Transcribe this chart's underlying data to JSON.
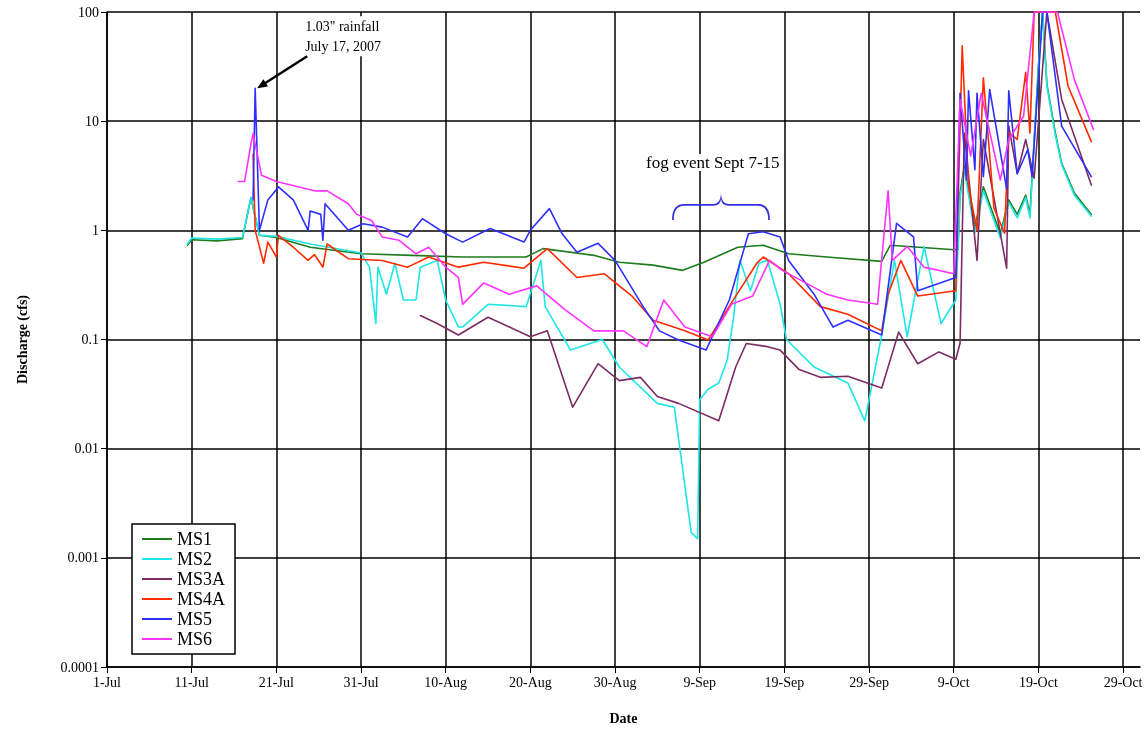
{
  "chart_data": {
    "type": "line",
    "xlabel": "Date",
    "ylabel": "Discharge (cfs)",
    "xlim": [
      "2007-07-01",
      "2007-10-31"
    ],
    "xticks": [
      {
        "value": "2007-07-01",
        "label": "1-Jul"
      },
      {
        "value": "2007-07-11",
        "label": "11-Jul"
      },
      {
        "value": "2007-07-21",
        "label": "21-Jul"
      },
      {
        "value": "2007-07-31",
        "label": "31-Jul"
      },
      {
        "value": "2007-08-10",
        "label": "10-Aug"
      },
      {
        "value": "2007-08-20",
        "label": "20-Aug"
      },
      {
        "value": "2007-08-30",
        "label": "30-Aug"
      },
      {
        "value": "2007-09-09",
        "label": "9-Sep"
      },
      {
        "value": "2007-09-19",
        "label": "19-Sep"
      },
      {
        "value": "2007-09-29",
        "label": "29-Sep"
      },
      {
        "value": "2007-10-09",
        "label": "9-Oct"
      },
      {
        "value": "2007-10-19",
        "label": "19-Oct"
      },
      {
        "value": "2007-10-29",
        "label": "29-Oct"
      }
    ],
    "ylim": [
      0.0001,
      100
    ],
    "yticks": [
      0.0001,
      0.001,
      0.01,
      0.1,
      1,
      10,
      100
    ],
    "log": "y",
    "grid": true,
    "legend": "bottom left",
    "marker": "none",
    "line_style": "solid",
    "annotations": [
      {
        "text": "1.03\" rainfall\nJuly 17, 2007",
        "x": "2007-07-18T12:00",
        "y": 20
      },
      "fog event Sept 7-15"
    ],
    "series": [
      {
        "name": "MS1",
        "color": "#1e7b1e",
        "x": [
          "2007-07-10T12:00",
          "2007-07-11",
          "2007-07-14",
          "2007-07-17",
          "2007-07-18",
          "2007-07-19",
          "2007-07-21",
          "2007-07-25",
          "2007-07-31",
          "2007-08-06",
          "2007-08-12",
          "2007-08-19T12:00",
          "2007-08-21T12:00",
          "2007-08-27T12:00",
          "2007-08-30T12:00",
          "2007-09-03T12:00",
          "2007-09-07",
          "2007-09-09T12:00",
          "2007-09-13T12:00",
          "2007-09-16T12:00",
          "2007-09-19T12:00",
          "2007-09-24",
          "2007-09-30T12:00",
          "2007-10-01T12:00",
          "2007-10-09T12:00",
          "2007-10-09T18:00",
          "2007-10-10T06:00",
          "2007-10-11T12:00",
          "2007-10-12T12:00",
          "2007-10-14T12:00",
          "2007-10-15T12:00",
          "2007-10-16T12:00",
          "2007-10-17T12:00",
          "2007-10-18",
          "2007-10-19",
          "2007-10-19T12:00",
          "2007-10-20",
          "2007-10-21",
          "2007-10-21T18:00",
          "2007-10-23T06:00",
          "2007-10-25T06:00"
        ],
        "values": [
          0.73,
          0.82,
          0.8,
          0.84,
          2.0,
          0.9,
          0.86,
          0.7,
          0.61,
          0.59,
          0.57,
          0.57,
          0.68,
          0.59,
          0.51,
          0.48,
          0.43,
          0.51,
          0.7,
          0.73,
          0.61,
          0.57,
          0.52,
          0.73,
          0.66,
          2.2,
          3.9,
          1.07,
          2.5,
          0.93,
          1.9,
          1.4,
          2.1,
          1.4,
          32,
          100,
          22,
          7.8,
          4.1,
          2.2,
          1.4
        ]
      },
      {
        "name": "MS2",
        "color": "#1ee6e6",
        "x": [
          "2007-07-10T12:00",
          "2007-07-11",
          "2007-07-14",
          "2007-07-17",
          "2007-07-18",
          "2007-07-19",
          "2007-07-21",
          "2007-07-25",
          "2007-07-31",
          "2007-08-01",
          "2007-08-01T18:00",
          "2007-08-02",
          "2007-08-03",
          "2007-08-04",
          "2007-08-05",
          "2007-08-06T12:00",
          "2007-08-07",
          "2007-08-09",
          "2007-08-10",
          "2007-08-11T12:00",
          "2007-08-12",
          "2007-08-15",
          "2007-08-19T12:00",
          "2007-08-21T06:00",
          "2007-08-21T18:00",
          "2007-08-24T18:00",
          "2007-08-28T12:00",
          "2007-08-30T12:00",
          "2007-09-04",
          "2007-09-06",
          "2007-09-08",
          "2007-09-08T18:00",
          "2007-09-09",
          "2007-09-10",
          "2007-09-11T06:00",
          "2007-09-12T06:00",
          "2007-09-13",
          "2007-09-13T18:00",
          "2007-09-15",
          "2007-09-16",
          "2007-09-17",
          "2007-09-18T12:00",
          "2007-09-19T06:00",
          "2007-09-22T12:00",
          "2007-09-26T12:00",
          "2007-09-28T12:00",
          "2007-09-30T12:00",
          "2007-10-02",
          "2007-10-03T12:00",
          "2007-10-05T12:00",
          "2007-10-07T12:00",
          "2007-10-09T06:00",
          "2007-10-09T18:00",
          "2007-10-10T06:00",
          "2007-10-11T12:00",
          "2007-10-12T12:00",
          "2007-10-14T12:00",
          "2007-10-15T12:00",
          "2007-10-16T12:00",
          "2007-10-17T12:00",
          "2007-10-18",
          "2007-10-19",
          "2007-10-19T12:00",
          "2007-10-20",
          "2007-10-21",
          "2007-10-21T18:00",
          "2007-10-23T06:00",
          "2007-10-25T06:00"
        ],
        "values": [
          0.75,
          0.85,
          0.83,
          0.86,
          2.0,
          0.9,
          0.88,
          0.75,
          0.62,
          0.46,
          0.14,
          0.46,
          0.26,
          0.5,
          0.23,
          0.23,
          0.46,
          0.53,
          0.23,
          0.13,
          0.13,
          0.21,
          0.2,
          0.53,
          0.2,
          0.08,
          0.1,
          0.056,
          0.026,
          0.024,
          0.0017,
          0.0015,
          0.028,
          0.035,
          0.04,
          0.065,
          0.16,
          0.53,
          0.28,
          0.5,
          0.53,
          0.21,
          0.1,
          0.056,
          0.04,
          0.018,
          0.11,
          0.53,
          0.106,
          0.71,
          0.14,
          0.23,
          2.0,
          3.6,
          0.95,
          2.3,
          0.85,
          1.8,
          1.3,
          2.0,
          1.3,
          30,
          100,
          21,
          7.5,
          4.0,
          2.1,
          1.35
        ]
      },
      {
        "name": "MS3A",
        "color": "#7b2d62",
        "x": [
          "2007-08-07",
          "2007-08-09",
          "2007-08-11T12:00",
          "2007-08-15",
          "2007-08-20",
          "2007-08-22",
          "2007-08-25",
          "2007-08-28",
          "2007-08-30T12:00",
          "2007-09-02",
          "2007-09-04",
          "2007-09-06T12:00",
          "2007-09-11T06:00",
          "2007-09-13T06:00",
          "2007-09-14T12:00",
          "2007-09-17",
          "2007-09-18T12:00",
          "2007-09-20T18:00",
          "2007-09-23T06:00",
          "2007-09-26T12:00",
          "2007-09-30T12:00",
          "2007-10-02T12:00",
          "2007-10-04T18:00",
          "2007-10-07T06:00",
          "2007-10-09T06:00",
          "2007-10-09T18:00",
          "2007-10-10T06:00",
          "2007-10-11T18:00",
          "2007-10-12T12:00",
          "2007-10-15T06:00",
          "2007-10-15T12:00",
          "2007-10-16T12:00",
          "2007-10-17T12:00",
          "2007-10-18T12:00",
          "2007-10-20",
          "2007-10-21T18:00",
          "2007-10-25T06:00"
        ],
        "values": [
          0.166,
          0.14,
          0.11,
          0.16,
          0.106,
          0.12,
          0.024,
          0.06,
          0.042,
          0.045,
          0.03,
          0.026,
          0.018,
          0.056,
          0.092,
          0.086,
          0.08,
          0.053,
          0.045,
          0.046,
          0.036,
          0.117,
          0.06,
          0.077,
          0.066,
          0.093,
          7.8,
          0.53,
          6.8,
          0.45,
          9,
          3.3,
          6.8,
          3,
          100,
          15.8,
          2.6
        ]
      },
      {
        "name": "MS4A",
        "color": "#ff2a00",
        "x": [
          "2007-07-18T06:00",
          "2007-07-18T12:00",
          "2007-07-19T12:00",
          "2007-07-20",
          "2007-07-21",
          "2007-07-21T06:00",
          "2007-07-23",
          "2007-07-24T18:00",
          "2007-07-25T12:00",
          "2007-07-26T12:00",
          "2007-07-27",
          "2007-07-29T12:00",
          "2007-08-02T12:00",
          "2007-08-05T12:00",
          "2007-08-08",
          "2007-08-11T12:00",
          "2007-08-14T12:00",
          "2007-08-19T06:00",
          "2007-08-22",
          "2007-08-25T12:00",
          "2007-08-28T18:00",
          "2007-09-01",
          "2007-09-03T12:00",
          "2007-09-07T06:00",
          "2007-09-10",
          "2007-09-13T06:00",
          "2007-09-15T18:00",
          "2007-09-16T12:00",
          "2007-09-19T12:00",
          "2007-09-23T06:00",
          "2007-09-26T12:00",
          "2007-09-30T12:00",
          "2007-10-01T06:00",
          "2007-10-02T18:00",
          "2007-10-04T18:00",
          "2007-10-09T06:00",
          "2007-10-10",
          "2007-10-10T18:00",
          "2007-10-11T18:00",
          "2007-10-12T12:00",
          "2007-10-13T18:00",
          "2007-10-15",
          "2007-10-15T12:00",
          "2007-10-16T12:00",
          "2007-10-17T12:00",
          "2007-10-18",
          "2007-10-18T12:00",
          "2007-10-21",
          "2007-10-22T12:00",
          "2007-10-25T06:00"
        ],
        "values": [
          5,
          1.0,
          0.5,
          0.78,
          0.57,
          0.9,
          0.7,
          0.53,
          0.6,
          0.46,
          0.75,
          0.55,
          0.53,
          0.46,
          0.57,
          0.46,
          0.51,
          0.45,
          0.68,
          0.37,
          0.4,
          0.25,
          0.15,
          0.12,
          0.099,
          0.25,
          0.5,
          0.57,
          0.4,
          0.2,
          0.17,
          0.12,
          0.26,
          0.53,
          0.25,
          0.28,
          49,
          2.5,
          1.0,
          25,
          1.6,
          0.94,
          7.8,
          6.8,
          28,
          7.8,
          100,
          100,
          21,
          6.5
        ]
      },
      {
        "name": "MS5",
        "color": "#2f2fff",
        "x": [
          "2007-07-18T06:00",
          "2007-07-18T12:00",
          "2007-07-19",
          "2007-07-20",
          "2007-07-21T06:00",
          "2007-07-23",
          "2007-07-24T18:00",
          "2007-07-25",
          "2007-07-26T06:00",
          "2007-07-26T12:00",
          "2007-07-26T18:00",
          "2007-07-29T12:00",
          "2007-07-31T06:00",
          "2007-08-02T12:00",
          "2007-08-05T12:00",
          "2007-08-07T06:00",
          "2007-08-10",
          "2007-08-12",
          "2007-08-15T06:00",
          "2007-08-19T06:00",
          "2007-08-20",
          "2007-08-22T06:00",
          "2007-08-23T18:00",
          "2007-08-25T12:00",
          "2007-08-28",
          "2007-08-30",
          "2007-09-02T12:00",
          "2007-09-04T06:00",
          "2007-09-06T12:00",
          "2007-09-09T18:00",
          "2007-09-12T12:00",
          "2007-09-14T18:00",
          "2007-09-16T12:00",
          "2007-09-18T12:00",
          "2007-09-19T12:00",
          "2007-09-22T12:00",
          "2007-09-24T18:00",
          "2007-09-26T12:00",
          "2007-09-30T12:00",
          "2007-10-02T06:00",
          "2007-10-04T06:00",
          "2007-10-04T18:00",
          "2007-10-09T06:00",
          "2007-10-09T18:00",
          "2007-10-10T12:00",
          "2007-10-10T18:00",
          "2007-10-11T12:00",
          "2007-10-11T18:00",
          "2007-10-12T12:00",
          "2007-10-13T06:00",
          "2007-10-15T06:00",
          "2007-10-15T12:00",
          "2007-10-16T12:00",
          "2007-10-17T18:00",
          "2007-10-18T06:00",
          "2007-10-19T12:00",
          "2007-10-20",
          "2007-10-21T18:00",
          "2007-10-25T06:00"
        ],
        "values": [
          1.9,
          20,
          1.0,
          1.9,
          2.5,
          1.9,
          1.0,
          1.5,
          1.4,
          0.81,
          1.75,
          1.0,
          1.15,
          1.07,
          0.87,
          1.28,
          0.93,
          0.78,
          1.04,
          0.78,
          1.0,
          1.58,
          0.93,
          0.63,
          0.76,
          0.53,
          0.19,
          0.12,
          0.099,
          0.08,
          0.23,
          0.93,
          0.97,
          0.87,
          0.53,
          0.26,
          0.13,
          0.15,
          0.11,
          1.16,
          0.87,
          0.28,
          0.37,
          18,
          2.9,
          19,
          3.6,
          18,
          3.1,
          19.5,
          2.4,
          19,
          3.3,
          5.5,
          3.1,
          100,
          100,
          9,
          3.1
        ]
      },
      {
        "name": "MS6",
        "color": "#ff33ff",
        "x": [
          "2007-07-16T12:00",
          "2007-07-17T06:00",
          "2007-07-18",
          "2007-07-18T06:00",
          "2007-07-19T06:00",
          "2007-07-21",
          "2007-07-25T12:00",
          "2007-07-27",
          "2007-07-29T12:00",
          "2007-07-30T12:00",
          "2007-08-01T06:00",
          "2007-08-02T12:00",
          "2007-08-04T12:00",
          "2007-08-06T12:00",
          "2007-08-08",
          "2007-08-10",
          "2007-08-11T12:00",
          "2007-08-12",
          "2007-08-14T12:00",
          "2007-08-17T12:00",
          "2007-08-20T18:00",
          "2007-08-24",
          "2007-08-27T12:00",
          "2007-08-31",
          "2007-09-02T18:00",
          "2007-09-04T18:00",
          "2007-09-07T06:00",
          "2007-09-10T12:00",
          "2007-09-12T18:00",
          "2007-09-15T06:00",
          "2007-09-17T06:00",
          "2007-09-18T18:00",
          "2007-09-22T12:00",
          "2007-09-24",
          "2007-09-26T12:00",
          "2007-09-30",
          "2007-10-01T06:00",
          "2007-10-01T18:00",
          "2007-10-03T12:00",
          "2007-10-05T12:00",
          "2007-10-09",
          "2007-10-09T18:00",
          "2007-10-11",
          "2007-10-12T06:00",
          "2007-10-14T12:00",
          "2007-10-15T12:00",
          "2007-10-17T06:00",
          "2007-10-18T12:00",
          "2007-10-21T06:00",
          "2007-10-23T06:00",
          "2007-10-25T12:00"
        ],
        "values": [
          2.8,
          2.8,
          6.2,
          7.7,
          3.2,
          2.8,
          2.3,
          2.3,
          1.75,
          1.4,
          1.23,
          0.87,
          0.81,
          0.61,
          0.7,
          0.46,
          0.37,
          0.21,
          0.33,
          0.26,
          0.31,
          0.19,
          0.12,
          0.12,
          0.086,
          0.23,
          0.13,
          0.106,
          0.21,
          0.25,
          0.53,
          0.43,
          0.3,
          0.26,
          0.23,
          0.21,
          2.3,
          0.53,
          0.71,
          0.46,
          0.4,
          15.8,
          4.8,
          18,
          2.9,
          6.8,
          11.1,
          100,
          100,
          24,
          8.4
        ]
      }
    ]
  }
}
